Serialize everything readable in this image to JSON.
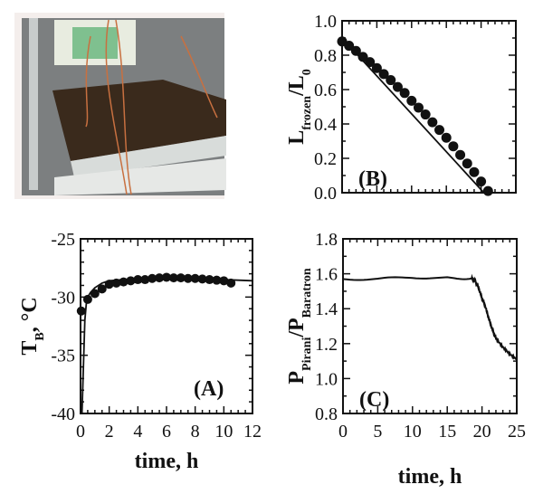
{
  "photo": {
    "description_icon": "freeze-dryer-shelf-photo"
  },
  "chart_data": [
    {
      "type": "line+scatter",
      "panel": "(A)",
      "ylabel": "T",
      "ylabel_sub": "B",
      "ylabel_suffix": ", °C",
      "xlabel": "time, h",
      "xlim": [
        0,
        12
      ],
      "ylim": [
        -40,
        -25
      ],
      "xticks": [
        0,
        2,
        4,
        6,
        8,
        10,
        12
      ],
      "yticks": [
        -25,
        -30,
        -35,
        -40
      ],
      "points": {
        "x": [
          0.05,
          0.5,
          1,
          1.5,
          2,
          2.5,
          3,
          3.5,
          4,
          4.5,
          5,
          5.5,
          6,
          6.5,
          7,
          7.5,
          8,
          8.5,
          9,
          9.5,
          10,
          10.5
        ],
        "y": [
          -31.2,
          -30.2,
          -29.7,
          -29.3,
          -28.9,
          -28.8,
          -28.7,
          -28.6,
          -28.5,
          -28.5,
          -28.4,
          -28.35,
          -28.3,
          -28.35,
          -28.35,
          -28.4,
          -28.4,
          -28.45,
          -28.5,
          -28.55,
          -28.6,
          -28.8
        ]
      },
      "line": {
        "x": [
          0.1,
          0.2,
          0.3,
          0.4,
          0.5,
          0.7,
          1,
          1.5,
          2,
          3,
          4,
          6,
          8,
          10,
          12
        ],
        "y": [
          -40,
          -36,
          -32,
          -30.6,
          -30,
          -29.6,
          -29.2,
          -28.8,
          -28.6,
          -28.5,
          -28.4,
          -28.3,
          -28.4,
          -28.5,
          -28.6
        ]
      }
    },
    {
      "type": "line+scatter",
      "panel": "(B)",
      "ylabel": "L",
      "ylabel_sub": "frozen",
      "ylabel_tail": "/L",
      "ylabel_tail_sub": "0",
      "xlim": [
        0,
        25
      ],
      "ylim": [
        0,
        1
      ],
      "yticks": [
        "0.0",
        "0.2",
        "0.4",
        "0.6",
        "0.8",
        "1.0"
      ],
      "points": {
        "x": [
          0,
          1,
          2,
          3,
          4,
          5,
          6,
          7,
          8,
          9,
          10,
          11,
          12,
          13,
          14,
          15,
          16,
          17,
          18,
          19,
          20,
          21
        ],
        "y": [
          0.88,
          0.855,
          0.825,
          0.79,
          0.76,
          0.725,
          0.69,
          0.655,
          0.615,
          0.58,
          0.535,
          0.495,
          0.455,
          0.41,
          0.365,
          0.32,
          0.27,
          0.22,
          0.17,
          0.12,
          0.065,
          0.01
        ]
      },
      "line": {
        "x": [
          0,
          20.4
        ],
        "y": [
          0.9,
          0
        ]
      }
    },
    {
      "type": "line",
      "panel": "(C)",
      "ylabel": "P",
      "ylabel_sub": "Pirani",
      "ylabel_tail": "/P",
      "ylabel_tail_sub": "Baratron",
      "xlabel": "time, h",
      "xlim": [
        0,
        25
      ],
      "ylim": [
        0.8,
        1.8
      ],
      "xticks": [
        0,
        5,
        10,
        15,
        20,
        25
      ],
      "yticks": [
        "0.8",
        "1.0",
        "1.2",
        "1.4",
        "1.6",
        "1.8"
      ],
      "line": {
        "x": [
          0,
          5,
          10,
          15,
          18.5,
          19,
          19.5,
          20,
          20.5,
          21,
          21.5,
          22,
          23,
          24,
          25
        ],
        "y": [
          1.57,
          1.57,
          1.58,
          1.575,
          1.575,
          1.56,
          1.52,
          1.46,
          1.41,
          1.34,
          1.28,
          1.23,
          1.18,
          1.14,
          1.11
        ]
      }
    }
  ]
}
